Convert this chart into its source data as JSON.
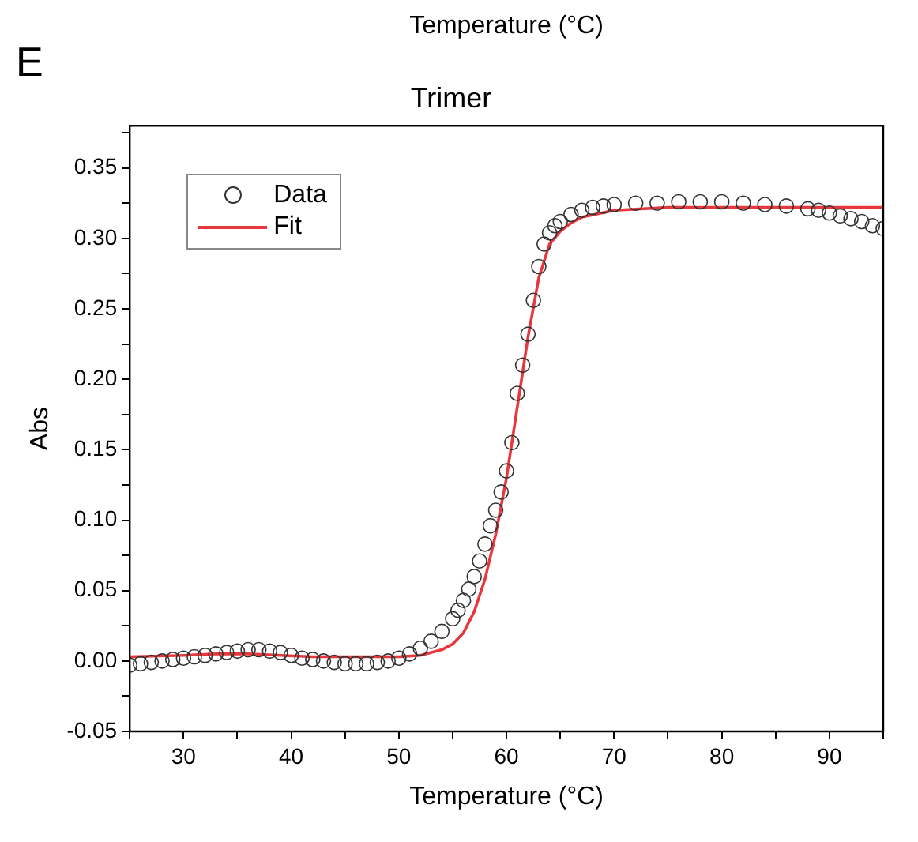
{
  "chart_data": {
    "type": "scatter",
    "title": "Trimer",
    "xlabel": "Temperature (°C)",
    "ylabel": "Abs",
    "annotations": [
      "Temperature (°C)",
      "E"
    ],
    "xlim": [
      25,
      95
    ],
    "ylim": [
      -0.05,
      0.38
    ],
    "xticks": [
      {
        "value": 25,
        "label": null
      },
      30,
      {
        "value": 35,
        "label": null
      },
      40,
      {
        "value": 45,
        "label": null
      },
      50,
      {
        "value": 55,
        "label": null
      },
      60,
      {
        "value": 65,
        "label": null
      },
      70,
      {
        "value": 75,
        "label": null
      },
      80,
      {
        "value": 85,
        "label": null
      },
      90,
      {
        "value": 95,
        "label": null
      }
    ],
    "yticks": [
      {
        "value": -0.05,
        "label": "-0.05"
      },
      {
        "value": -0.025,
        "label": null
      },
      {
        "value": 0,
        "label": "0.00"
      },
      {
        "value": 0.025,
        "label": null
      },
      {
        "value": 0.05,
        "label": "0.05"
      },
      {
        "value": 0.075,
        "label": null
      },
      {
        "value": 0.1,
        "label": "0.10"
      },
      {
        "value": 0.125,
        "label": null
      },
      {
        "value": 0.15,
        "label": "0.15"
      },
      {
        "value": 0.175,
        "label": null
      },
      {
        "value": 0.2,
        "label": "0.20"
      },
      {
        "value": 0.225,
        "label": null
      },
      {
        "value": 0.25,
        "label": "0.25"
      },
      {
        "value": 0.275,
        "label": null
      },
      {
        "value": 0.3,
        "label": "0.30"
      },
      {
        "value": 0.325,
        "label": null
      },
      {
        "value": 0.35,
        "label": "0.35"
      },
      {
        "value": 0.375,
        "label": null
      }
    ],
    "grid": false,
    "legend": "top left",
    "series": [
      {
        "name": "Data",
        "marker": "circle",
        "color": "#333333",
        "x": [
          25,
          26,
          27,
          28,
          29,
          30,
          31,
          32,
          33,
          34,
          35,
          36,
          37,
          38,
          39,
          40,
          41,
          42,
          43,
          44,
          45,
          46,
          47,
          48,
          49,
          50,
          51,
          52,
          53,
          54,
          55,
          55.5,
          56,
          56.5,
          57,
          57.5,
          58,
          58.5,
          59,
          59.5,
          60,
          60.5,
          61,
          61.5,
          62,
          62.5,
          63,
          63.5,
          64,
          64.5,
          65,
          66,
          67,
          68,
          69,
          70,
          72,
          74,
          76,
          78,
          80,
          82,
          84,
          86,
          88,
          89,
          90,
          91,
          92,
          93,
          94,
          95
        ],
        "values": [
          -0.003,
          -0.002,
          -0.001,
          0.0,
          0.001,
          0.002,
          0.003,
          0.004,
          0.005,
          0.006,
          0.007,
          0.008,
          0.008,
          0.007,
          0.006,
          0.004,
          0.002,
          0.001,
          0.0,
          -0.001,
          -0.002,
          -0.002,
          -0.002,
          -0.001,
          0.0,
          0.002,
          0.005,
          0.009,
          0.014,
          0.021,
          0.03,
          0.036,
          0.043,
          0.051,
          0.06,
          0.071,
          0.083,
          0.096,
          0.107,
          0.12,
          0.135,
          0.155,
          0.19,
          0.21,
          0.232,
          0.256,
          0.28,
          0.296,
          0.304,
          0.309,
          0.312,
          0.317,
          0.32,
          0.322,
          0.323,
          0.324,
          0.325,
          0.325,
          0.326,
          0.326,
          0.326,
          0.325,
          0.324,
          0.323,
          0.321,
          0.32,
          0.318,
          0.316,
          0.314,
          0.312,
          0.309,
          0.307
        ]
      },
      {
        "name": "Fit",
        "type": "line",
        "marker": "none",
        "line_style": "solid",
        "color": "#e8383d",
        "x": [
          25,
          30,
          33,
          36,
          39,
          42,
          45,
          50,
          52,
          54,
          55,
          56,
          57,
          58,
          59,
          60,
          61,
          62,
          63,
          64,
          65,
          66,
          67,
          70,
          75,
          80,
          95
        ],
        "values": [
          0.003,
          0.004,
          0.005,
          0.005,
          0.004,
          0.003,
          0.003,
          0.003,
          0.004,
          0.008,
          0.012,
          0.02,
          0.035,
          0.058,
          0.09,
          0.13,
          0.18,
          0.23,
          0.272,
          0.296,
          0.305,
          0.311,
          0.315,
          0.32,
          0.322,
          0.322,
          0.322
        ]
      }
    ]
  }
}
